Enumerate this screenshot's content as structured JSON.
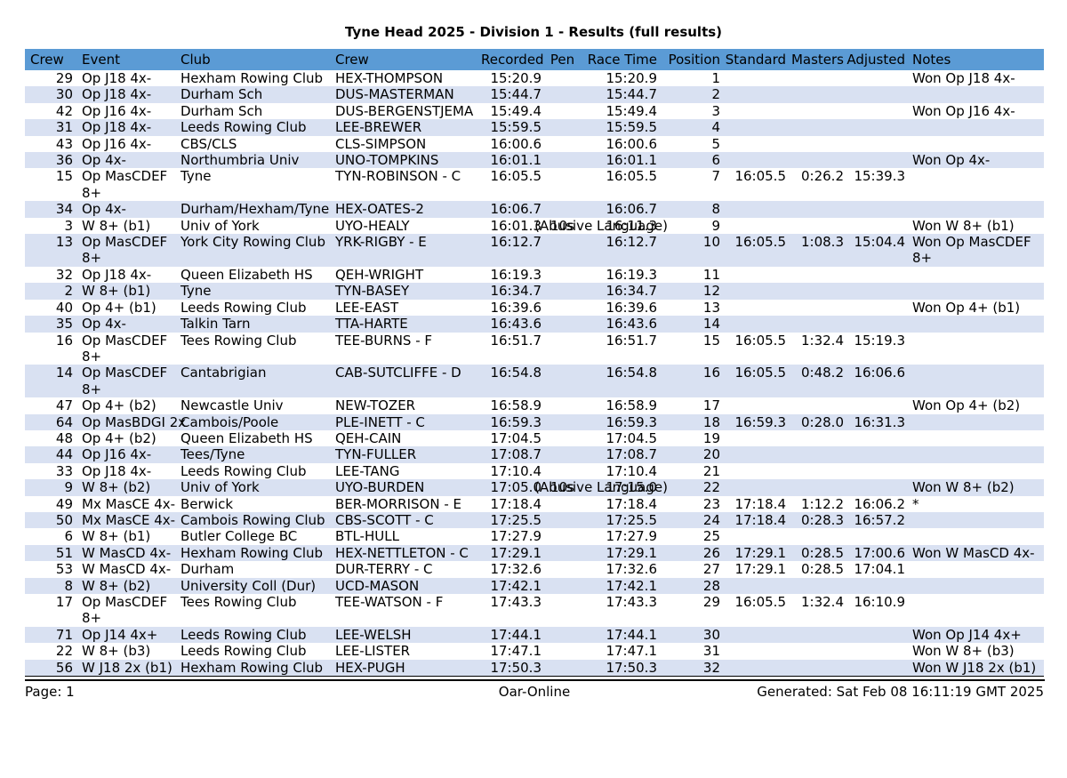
{
  "title": "Tyne Head 2025 - Division 1 - Results (full results)",
  "colors": {
    "header_bg": "#5b9bd5",
    "row_alt_bg": "#d9e1f2",
    "row_bg": "#ffffff",
    "text": "#000000"
  },
  "table": {
    "headers": [
      "Crew",
      "Event",
      "Club",
      "Crew",
      "Recorded",
      "Pen",
      "Race Time",
      "Position",
      "Standard",
      "Masters",
      "Adjusted",
      "Notes"
    ],
    "rows": [
      {
        "crew": "29",
        "event": "Op J18 4x-",
        "club": "Hexham Rowing Club",
        "name": "HEX-THOMPSON",
        "recorded": "15:20.9",
        "pen": "",
        "pen_note": "",
        "race_time": "15:20.9",
        "position": "1",
        "standard": "",
        "masters": "",
        "adjusted": "",
        "notes": "Won Op J18 4x-"
      },
      {
        "crew": "30",
        "event": "Op J18 4x-",
        "club": "Durham Sch",
        "name": "DUS-MASTERMAN",
        "recorded": "15:44.7",
        "pen": "",
        "pen_note": "",
        "race_time": "15:44.7",
        "position": "2",
        "standard": "",
        "masters": "",
        "adjusted": "",
        "notes": ""
      },
      {
        "crew": "42",
        "event": "Op J16 4x-",
        "club": "Durham Sch",
        "name": "DUS-BERGENSTJEMA",
        "recorded": "15:49.4",
        "pen": "",
        "pen_note": "",
        "race_time": "15:49.4",
        "position": "3",
        "standard": "",
        "masters": "",
        "adjusted": "",
        "notes": "Won Op J16 4x-"
      },
      {
        "crew": "31",
        "event": "Op J18 4x-",
        "club": "Leeds Rowing Club",
        "name": "LEE-BREWER",
        "recorded": "15:59.5",
        "pen": "",
        "pen_note": "",
        "race_time": "15:59.5",
        "position": "4",
        "standard": "",
        "masters": "",
        "adjusted": "",
        "notes": ""
      },
      {
        "crew": "43",
        "event": "Op J16 4x-",
        "club": "CBS/CLS",
        "name": "CLS-SIMPSON",
        "recorded": "16:00.6",
        "pen": "",
        "pen_note": "",
        "race_time": "16:00.6",
        "position": "5",
        "standard": "",
        "masters": "",
        "adjusted": "",
        "notes": ""
      },
      {
        "crew": "36",
        "event": "Op 4x-",
        "club": "Northumbria Univ",
        "name": "UNO-TOMPKINS",
        "recorded": "16:01.1",
        "pen": "",
        "pen_note": "",
        "race_time": "16:01.1",
        "position": "6",
        "standard": "",
        "masters": "",
        "adjusted": "",
        "notes": "Won Op 4x-"
      },
      {
        "crew": "15",
        "event": "Op MasCDEF\n8+",
        "club": "Tyne",
        "name": "TYN-ROBINSON - C",
        "recorded": "16:05.5",
        "pen": "",
        "pen_note": "",
        "race_time": "16:05.5",
        "position": "7",
        "standard": "16:05.5",
        "masters": "0:26.2",
        "adjusted": "15:39.3",
        "notes": ""
      },
      {
        "crew": "34",
        "event": "Op 4x-",
        "club": "Durham/Hexham/Tyne",
        "name": "HEX-OATES-2",
        "recorded": "16:06.7",
        "pen": "",
        "pen_note": "",
        "race_time": "16:06.7",
        "position": "8",
        "standard": "",
        "masters": "",
        "adjusted": "",
        "notes": ""
      },
      {
        "crew": "3",
        "event": "W 8+ (b1)",
        "club": "Univ of York",
        "name": "UYO-HEALY",
        "recorded": "16:01.3",
        "pen": "10s",
        "pen_note": "(Abusive Language)",
        "race_time": "16:11.3",
        "position": "9",
        "standard": "",
        "masters": "",
        "adjusted": "",
        "notes": "Won W 8+ (b1)"
      },
      {
        "crew": "13",
        "event": "Op MasCDEF\n8+",
        "club": "York City Rowing Club",
        "name": "YRK-RIGBY - E",
        "recorded": "16:12.7",
        "pen": "",
        "pen_note": "",
        "race_time": "16:12.7",
        "position": "10",
        "standard": "16:05.5",
        "masters": "1:08.3",
        "adjusted": "15:04.4",
        "notes": "Won Op MasCDEF\n8+"
      },
      {
        "crew": "32",
        "event": "Op J18 4x-",
        "club": "Queen Elizabeth HS",
        "name": "QEH-WRIGHT",
        "recorded": "16:19.3",
        "pen": "",
        "pen_note": "",
        "race_time": "16:19.3",
        "position": "11",
        "standard": "",
        "masters": "",
        "adjusted": "",
        "notes": ""
      },
      {
        "crew": "2",
        "event": "W 8+ (b1)",
        "club": "Tyne",
        "name": "TYN-BASEY",
        "recorded": "16:34.7",
        "pen": "",
        "pen_note": "",
        "race_time": "16:34.7",
        "position": "12",
        "standard": "",
        "masters": "",
        "adjusted": "",
        "notes": ""
      },
      {
        "crew": "40",
        "event": "Op 4+ (b1)",
        "club": "Leeds Rowing Club",
        "name": "LEE-EAST",
        "recorded": "16:39.6",
        "pen": "",
        "pen_note": "",
        "race_time": "16:39.6",
        "position": "13",
        "standard": "",
        "masters": "",
        "adjusted": "",
        "notes": "Won Op 4+ (b1)"
      },
      {
        "crew": "35",
        "event": "Op 4x-",
        "club": "Talkin Tarn",
        "name": "TTA-HARTE",
        "recorded": "16:43.6",
        "pen": "",
        "pen_note": "",
        "race_time": "16:43.6",
        "position": "14",
        "standard": "",
        "masters": "",
        "adjusted": "",
        "notes": ""
      },
      {
        "crew": "16",
        "event": "Op MasCDEF\n8+",
        "club": "Tees Rowing Club",
        "name": "TEE-BURNS - F",
        "recorded": "16:51.7",
        "pen": "",
        "pen_note": "",
        "race_time": "16:51.7",
        "position": "15",
        "standard": "16:05.5",
        "masters": "1:32.4",
        "adjusted": "15:19.3",
        "notes": ""
      },
      {
        "crew": "14",
        "event": "Op MasCDEF\n8+",
        "club": "Cantabrigian",
        "name": "CAB-SUTCLIFFE - D",
        "recorded": "16:54.8",
        "pen": "",
        "pen_note": "",
        "race_time": "16:54.8",
        "position": "16",
        "standard": "16:05.5",
        "masters": "0:48.2",
        "adjusted": "16:06.6",
        "notes": ""
      },
      {
        "crew": "47",
        "event": "Op 4+ (b2)",
        "club": "Newcastle Univ",
        "name": "NEW-TOZER",
        "recorded": "16:58.9",
        "pen": "",
        "pen_note": "",
        "race_time": "16:58.9",
        "position": "17",
        "standard": "",
        "masters": "",
        "adjusted": "",
        "notes": "Won Op 4+ (b2)"
      },
      {
        "crew": "64",
        "event": "Op MasBDGI 2x",
        "club": "Cambois/Poole",
        "name": "PLE-INETT - C",
        "recorded": "16:59.3",
        "pen": "",
        "pen_note": "",
        "race_time": "16:59.3",
        "position": "18",
        "standard": "16:59.3",
        "masters": "0:28.0",
        "adjusted": "16:31.3",
        "notes": ""
      },
      {
        "crew": "48",
        "event": "Op 4+ (b2)",
        "club": "Queen Elizabeth HS",
        "name": "QEH-CAIN",
        "recorded": "17:04.5",
        "pen": "",
        "pen_note": "",
        "race_time": "17:04.5",
        "position": "19",
        "standard": "",
        "masters": "",
        "adjusted": "",
        "notes": ""
      },
      {
        "crew": "44",
        "event": "Op J16 4x-",
        "club": "Tees/Tyne",
        "name": "TYN-FULLER",
        "recorded": "17:08.7",
        "pen": "",
        "pen_note": "",
        "race_time": "17:08.7",
        "position": "20",
        "standard": "",
        "masters": "",
        "adjusted": "",
        "notes": ""
      },
      {
        "crew": "33",
        "event": "Op J18 4x-",
        "club": "Leeds Rowing Club",
        "name": "LEE-TANG",
        "recorded": "17:10.4",
        "pen": "",
        "pen_note": "",
        "race_time": "17:10.4",
        "position": "21",
        "standard": "",
        "masters": "",
        "adjusted": "",
        "notes": ""
      },
      {
        "crew": "9",
        "event": "W 8+ (b2)",
        "club": "Univ of York",
        "name": "UYO-BURDEN",
        "recorded": "17:05.0",
        "pen": "10s",
        "pen_note": "(Abusive Language)",
        "race_time": "17:15.0",
        "position": "22",
        "standard": "",
        "masters": "",
        "adjusted": "",
        "notes": "Won W 8+ (b2)"
      },
      {
        "crew": "49",
        "event": "Mx MasCE 4x-",
        "club": "Berwick",
        "name": "BER-MORRISON - E",
        "recorded": "17:18.4",
        "pen": "",
        "pen_note": "",
        "race_time": "17:18.4",
        "position": "23",
        "standard": "17:18.4",
        "masters": "1:12.2",
        "adjusted": "16:06.2",
        "notes": "*"
      },
      {
        "crew": "50",
        "event": "Mx MasCE 4x-",
        "club": "Cambois Rowing Club",
        "name": "CBS-SCOTT - C",
        "recorded": "17:25.5",
        "pen": "",
        "pen_note": "",
        "race_time": "17:25.5",
        "position": "24",
        "standard": "17:18.4",
        "masters": "0:28.3",
        "adjusted": "16:57.2",
        "notes": ""
      },
      {
        "crew": "6",
        "event": "W 8+ (b1)",
        "club": "Butler College BC",
        "name": "BTL-HULL",
        "recorded": "17:27.9",
        "pen": "",
        "pen_note": "",
        "race_time": "17:27.9",
        "position": "25",
        "standard": "",
        "masters": "",
        "adjusted": "",
        "notes": ""
      },
      {
        "crew": "51",
        "event": "W MasCD 4x-",
        "club": "Hexham Rowing Club",
        "name": "HEX-NETTLETON - C",
        "recorded": "17:29.1",
        "pen": "",
        "pen_note": "",
        "race_time": "17:29.1",
        "position": "26",
        "standard": "17:29.1",
        "masters": "0:28.5",
        "adjusted": "17:00.6",
        "notes": "Won W MasCD 4x-"
      },
      {
        "crew": "53",
        "event": "W MasCD 4x-",
        "club": "Durham",
        "name": "DUR-TERRY - C",
        "recorded": "17:32.6",
        "pen": "",
        "pen_note": "",
        "race_time": "17:32.6",
        "position": "27",
        "standard": "17:29.1",
        "masters": "0:28.5",
        "adjusted": "17:04.1",
        "notes": ""
      },
      {
        "crew": "8",
        "event": "W 8+ (b2)",
        "club": "University Coll (Dur)",
        "name": "UCD-MASON",
        "recorded": "17:42.1",
        "pen": "",
        "pen_note": "",
        "race_time": "17:42.1",
        "position": "28",
        "standard": "",
        "masters": "",
        "adjusted": "",
        "notes": ""
      },
      {
        "crew": "17",
        "event": "Op MasCDEF\n8+",
        "club": "Tees Rowing Club",
        "name": "TEE-WATSON - F",
        "recorded": "17:43.3",
        "pen": "",
        "pen_note": "",
        "race_time": "17:43.3",
        "position": "29",
        "standard": "16:05.5",
        "masters": "1:32.4",
        "adjusted": "16:10.9",
        "notes": ""
      },
      {
        "crew": "71",
        "event": "Op J14 4x+",
        "club": "Leeds Rowing Club",
        "name": "LEE-WELSH",
        "recorded": "17:44.1",
        "pen": "",
        "pen_note": "",
        "race_time": "17:44.1",
        "position": "30",
        "standard": "",
        "masters": "",
        "adjusted": "",
        "notes": "Won Op J14 4x+"
      },
      {
        "crew": "22",
        "event": "W 8+ (b3)",
        "club": "Leeds Rowing Club",
        "name": "LEE-LISTER",
        "recorded": "17:47.1",
        "pen": "",
        "pen_note": "",
        "race_time": "17:47.1",
        "position": "31",
        "standard": "",
        "masters": "",
        "adjusted": "",
        "notes": "Won W 8+ (b3)"
      },
      {
        "crew": "56",
        "event": "W J18 2x (b1)",
        "club": "Hexham Rowing Club",
        "name": "HEX-PUGH",
        "recorded": "17:50.3",
        "pen": "",
        "pen_note": "",
        "race_time": "17:50.3",
        "position": "32",
        "standard": "",
        "masters": "",
        "adjusted": "",
        "notes": "Won W J18 2x (b1)"
      }
    ]
  },
  "footer": {
    "page": "Page: 1",
    "center": "Oar-Online",
    "generated": "Generated: Sat Feb 08 16:11:19 GMT 2025"
  }
}
